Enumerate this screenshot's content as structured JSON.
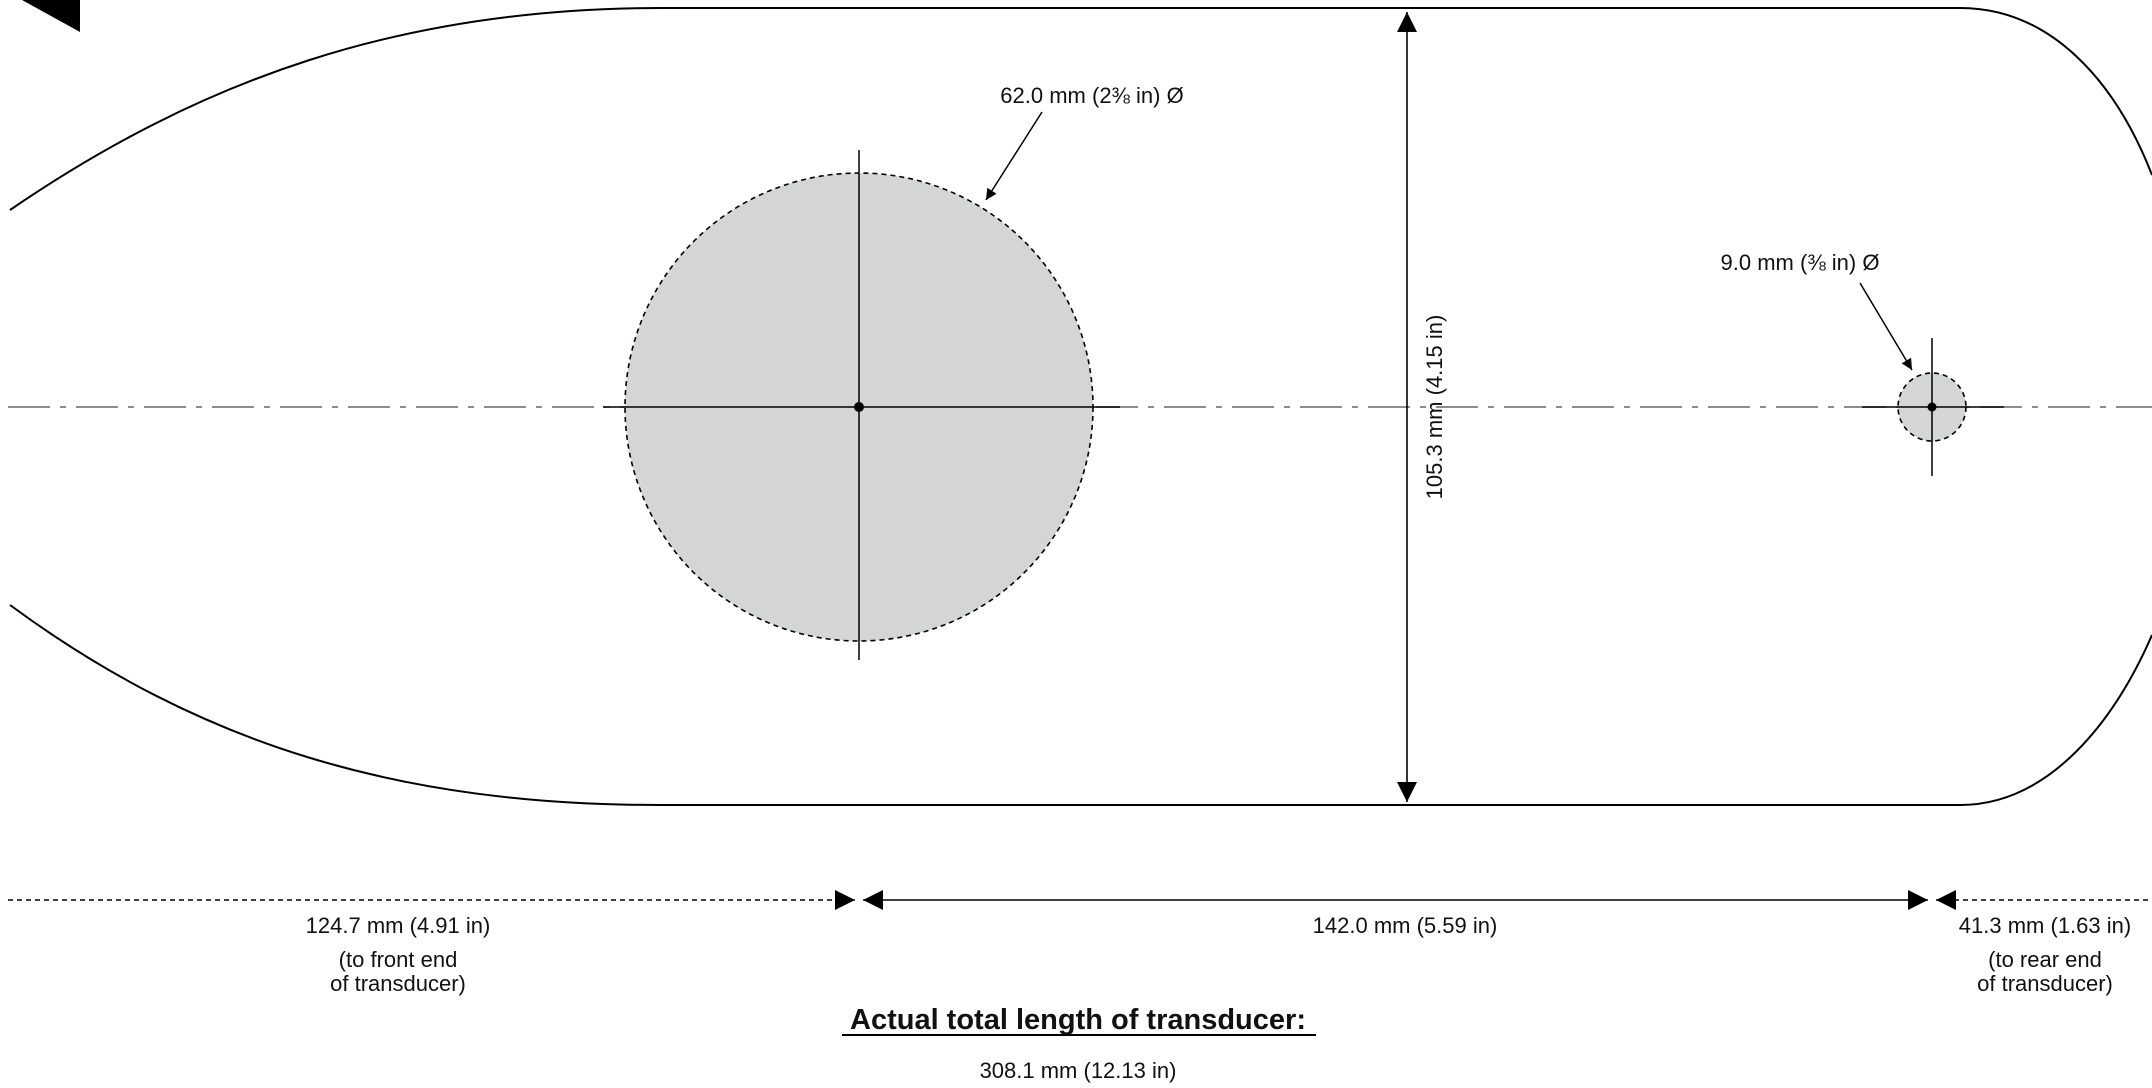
{
  "template": {
    "outline_color": "#000000",
    "hole_fill": "#d4d5d5",
    "large_hole": {
      "label": "62.0 mm (2⅜ in) Ø"
    },
    "small_hole": {
      "label": "9.0 mm (⅜ in) Ø"
    },
    "width_dimension": {
      "label": "105.3 mm (4.15 in)"
    },
    "front_dimension": {
      "label": "124.7 mm (4.91 in)",
      "note_line1": "(to front end",
      "note_line2": "of transducer)"
    },
    "center_dimension": {
      "label": "142.0 mm (5.59 in)"
    },
    "rear_dimension": {
      "label": "41.3 mm (1.63 in)",
      "note_line1": "(to rear end",
      "note_line2": "of transducer)"
    },
    "total_length": {
      "heading": "Actual total length of transducer:",
      "value": "308.1 mm (12.13 in)"
    }
  }
}
